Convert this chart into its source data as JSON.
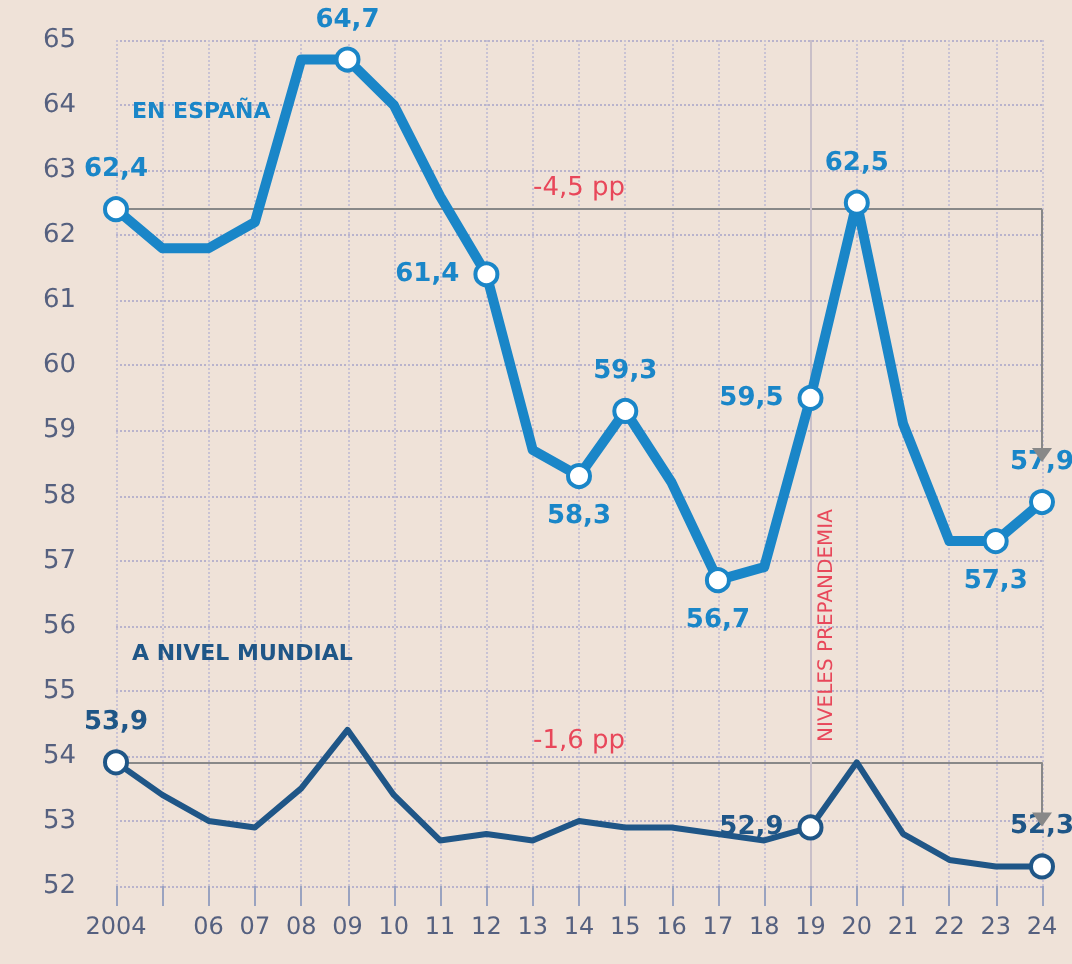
{
  "chart_data": {
    "type": "line",
    "categories": [
      "2004",
      null,
      "06",
      "07",
      "08",
      "09",
      "10",
      "11",
      "12",
      "13",
      "14",
      "15",
      "16",
      "17",
      "18",
      "19",
      "20",
      "21",
      "22",
      "23",
      "24"
    ],
    "series": [
      {
        "name": "EN ESPAÑA",
        "color": "#1a86c8",
        "values": [
          62.4,
          61.8,
          61.8,
          62.2,
          64.7,
          64.7,
          64.0,
          62.6,
          61.4,
          58.7,
          58.3,
          59.3,
          58.2,
          56.7,
          56.9,
          59.5,
          62.5,
          59.1,
          57.3,
          57.3,
          57.9
        ],
        "value_labels": [
          "62,4",
          null,
          null,
          null,
          null,
          "64,7",
          null,
          null,
          "61,4",
          null,
          "58,3",
          "59,3",
          null,
          "56,7",
          null,
          "59,5",
          "62,5",
          null,
          null,
          "57,3",
          "57,9"
        ]
      },
      {
        "name": "A NIVEL MUNDIAL",
        "color": "#1f5687",
        "values": [
          53.9,
          53.4,
          53.0,
          52.9,
          53.5,
          54.4,
          53.4,
          52.7,
          52.8,
          52.7,
          53.0,
          52.9,
          52.9,
          52.8,
          52.7,
          52.9,
          53.9,
          52.8,
          52.4,
          52.3,
          52.3
        ],
        "value_labels": [
          "53,9",
          null,
          null,
          null,
          null,
          null,
          null,
          null,
          null,
          null,
          null,
          null,
          null,
          null,
          null,
          "52,9",
          null,
          null,
          null,
          null,
          "52,3"
        ]
      }
    ],
    "ylim": [
      52,
      65
    ],
    "yticks": [
      52,
      53,
      54,
      55,
      56,
      57,
      58,
      59,
      60,
      61,
      62,
      63,
      64,
      65
    ],
    "grid": true,
    "legend": false,
    "line_style": "solid",
    "ref_lines": [
      {
        "axis": "y",
        "value": 62.4,
        "label": "-4,5 pp",
        "color": "#888888"
      },
      {
        "axis": "y",
        "value": 53.9,
        "label": "-1,6 pp",
        "color": "#888888"
      },
      {
        "axis": "x",
        "value": "19",
        "label": "NIVELES PREPANDEMIA",
        "color": "#c9bfc8"
      }
    ]
  }
}
